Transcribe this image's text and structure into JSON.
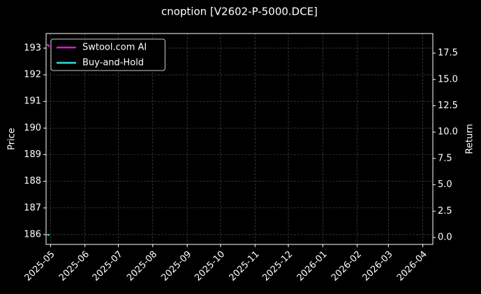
{
  "chart_data": {
    "type": "line",
    "title": "cnoption [V2602-P-5000.DCE]",
    "ylabel": "Price",
    "y2label": "Return",
    "x": [
      "2025-04-28",
      "2025-04-30"
    ],
    "xlim": [
      "2025-04-27",
      "2026-04-10"
    ],
    "xticks": [
      "2025-05",
      "2025-06",
      "2025-07",
      "2025-08",
      "2025-09",
      "2025-10",
      "2025-11",
      "2025-12",
      "2026-01",
      "2026-02",
      "2026-03",
      "2026-04"
    ],
    "ylim": [
      185.63,
      193.55
    ],
    "yticks": [
      186,
      187,
      188,
      189,
      190,
      191,
      192,
      193
    ],
    "y2lim": [
      -0.66,
      19.36
    ],
    "y2ticks": [
      {
        "value": 0,
        "label": "0.0"
      },
      2.5,
      {
        "value": 5,
        "label": "5.0"
      },
      7.5,
      {
        "value": 10,
        "label": "10.0"
      },
      12.5,
      {
        "value": 15,
        "label": "15.0"
      },
      17.5
    ],
    "grid": true,
    "legend": "upper left",
    "series": [
      {
        "name": "Swtool.com AI",
        "color": "#cc22cc",
        "values": [
          193.15,
          193.05
        ]
      },
      {
        "name": "Buy-and-Hold",
        "color": "#33dddd",
        "axis": "y2",
        "values": [
          0.25,
          0.25
        ]
      }
    ]
  }
}
